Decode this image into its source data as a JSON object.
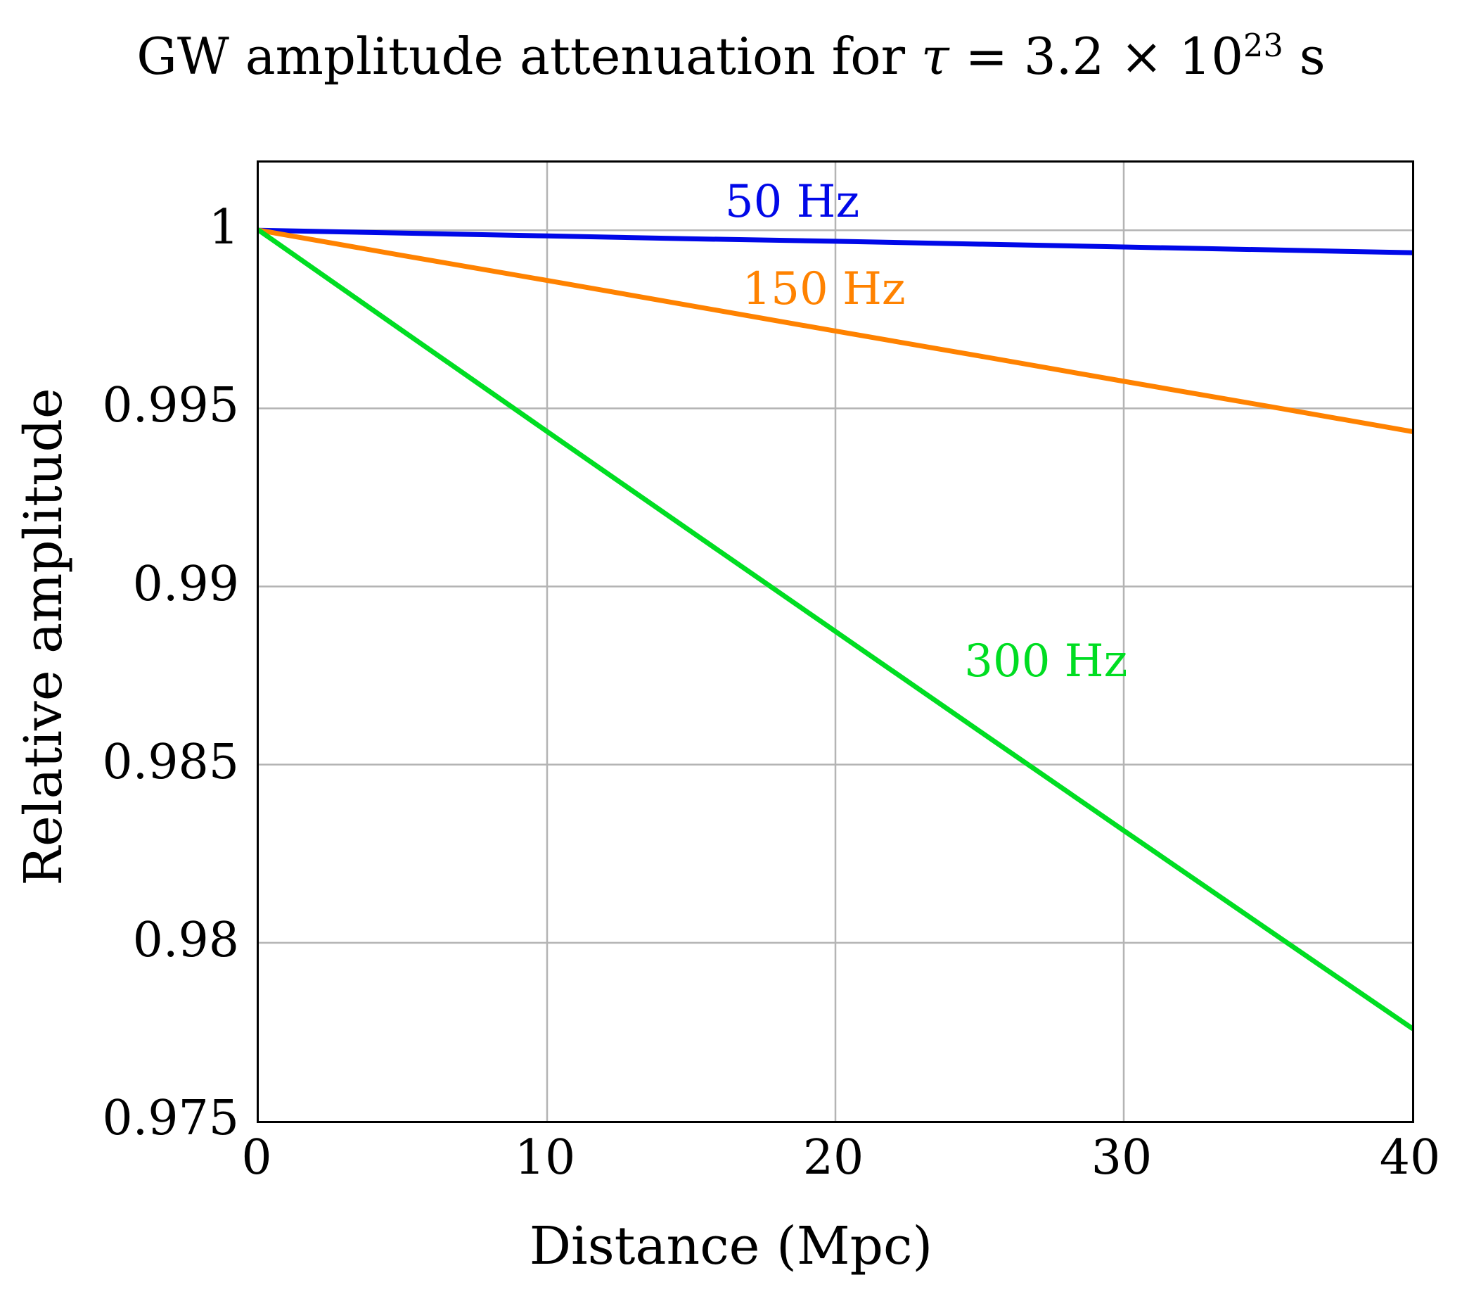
{
  "title": {
    "prefix": "GW amplitude attenuation for ",
    "tau": "τ",
    "mid": " = 3.2 × 10",
    "exponent": "23",
    "suffix": " s"
  },
  "chart_data": {
    "type": "line",
    "title": "GW amplitude attenuation for τ = 3.2 × 10²³ s",
    "xlabel": "Distance (Mpc)",
    "ylabel": "Relative amplitude",
    "xlim": [
      0,
      40
    ],
    "ylim": [
      0.975,
      1.0019
    ],
    "xticks": [
      0,
      10,
      20,
      30,
      40
    ],
    "xtick_labels": [
      "0",
      "10",
      "20",
      "30",
      "40"
    ],
    "yticks": [
      0.975,
      0.98,
      0.985,
      0.99,
      0.995,
      1
    ],
    "ytick_labels": [
      "0.975",
      "0.98",
      "0.985",
      "0.99",
      "0.995",
      "1"
    ],
    "grid": true,
    "grid_color": "#b4b4b4",
    "frame_color": "#000000",
    "legend_position": "inline-labels",
    "x": [
      0,
      5,
      10,
      15,
      20,
      25,
      30,
      35,
      40
    ],
    "series": [
      {
        "name": "50 Hz",
        "color": "#0008e8",
        "values": [
          1.0,
          0.99992,
          0.99984,
          0.99976,
          0.99969,
          0.99961,
          0.99953,
          0.99945,
          0.99937
        ],
        "label_pos": {
          "x": 18.5,
          "y": 1.0008
        }
      },
      {
        "name": "150 Hz",
        "color": "#ff8200",
        "values": [
          1.0,
          0.99929,
          0.99859,
          0.99788,
          0.99717,
          0.99647,
          0.99576,
          0.99506,
          0.99435
        ],
        "label_pos": {
          "x": 19.6,
          "y": 0.99835
        }
      },
      {
        "name": "300 Hz",
        "color": "#00dd22",
        "values": [
          1.0,
          0.99717,
          0.99435,
          0.99154,
          0.98874,
          0.98594,
          0.98315,
          0.98037,
          0.9776
        ],
        "label_pos": {
          "x": 27.3,
          "y": 0.9879
        }
      }
    ]
  }
}
